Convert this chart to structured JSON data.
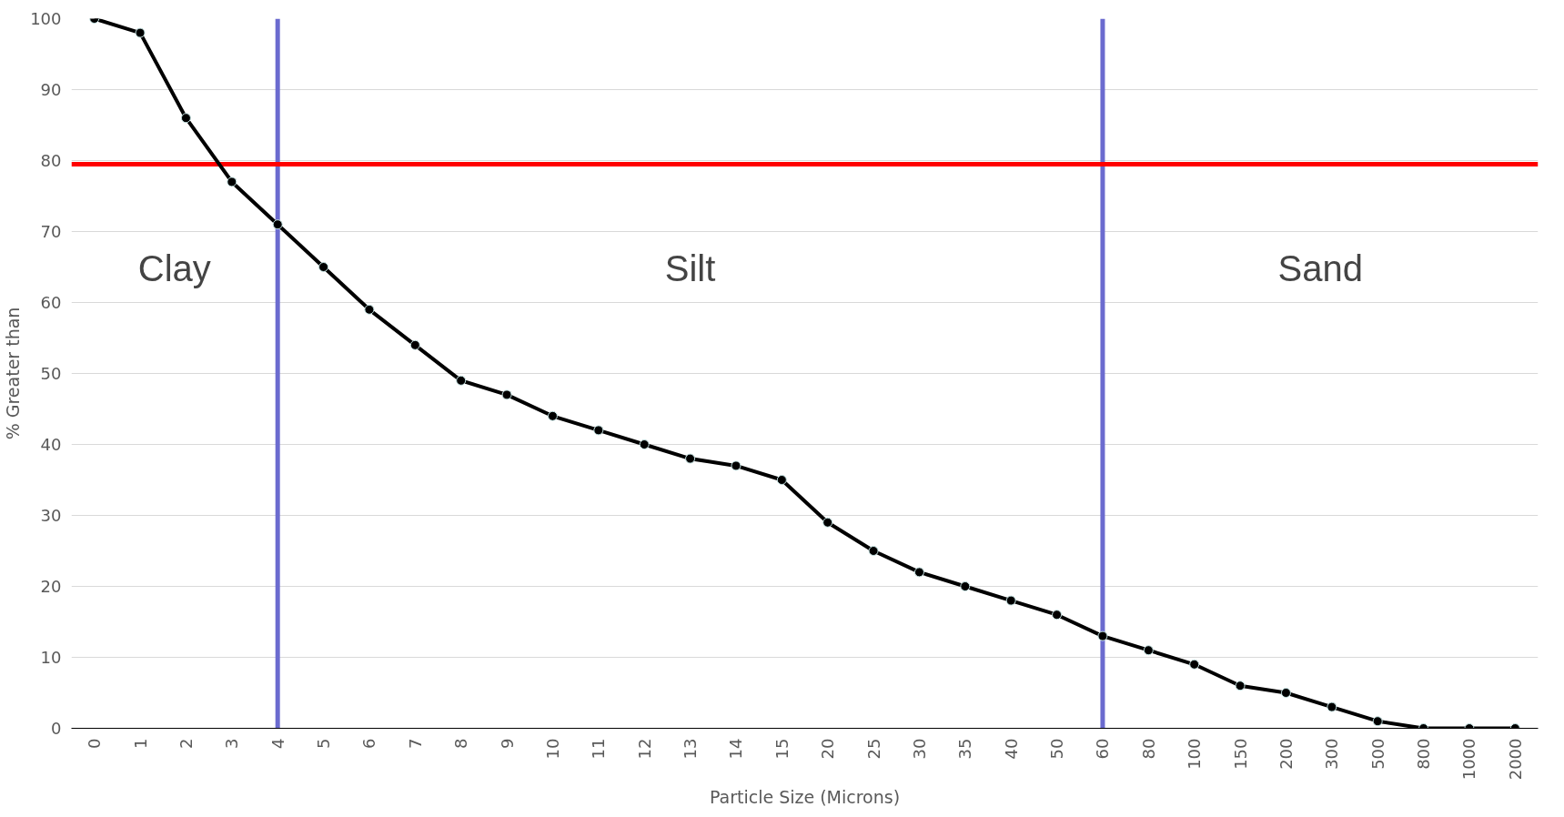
{
  "chart_data": {
    "type": "line",
    "xlabel": "Particle Size (Microns)",
    "ylabel": "% Greater than",
    "categories": [
      "0",
      "1",
      "2",
      "3",
      "4",
      "5",
      "6",
      "7",
      "8",
      "9",
      "10",
      "11",
      "12",
      "13",
      "14",
      "15",
      "20",
      "25",
      "30",
      "35",
      "40",
      "50",
      "60",
      "80",
      "100",
      "150",
      "200",
      "300",
      "500",
      "800",
      "1000",
      "2000"
    ],
    "series": [
      {
        "color": "#000000",
        "values": [
          100,
          98,
          86,
          77,
          71,
          65,
          59,
          54,
          49,
          47,
          44,
          42,
          40,
          38,
          37,
          35,
          29,
          25,
          22,
          20,
          18,
          16,
          13,
          11,
          9,
          6,
          5,
          3,
          1,
          0,
          0,
          0
        ]
      }
    ],
    "ylim": [
      0,
      100
    ],
    "yticks": [
      0,
      10,
      20,
      30,
      40,
      50,
      60,
      70,
      80,
      90,
      100
    ],
    "grid": "y",
    "marker": "circle",
    "line_style": "solid",
    "ref_lines": [
      {
        "axis": "x",
        "value": "4",
        "color": "#6b6bcf"
      },
      {
        "axis": "x",
        "value": "60",
        "color": "#6b6bcf"
      },
      {
        "axis": "y",
        "value": 79.5,
        "color": "#ff0000"
      }
    ],
    "annotations": [
      "Clay",
      "Silt",
      "Sand"
    ]
  }
}
